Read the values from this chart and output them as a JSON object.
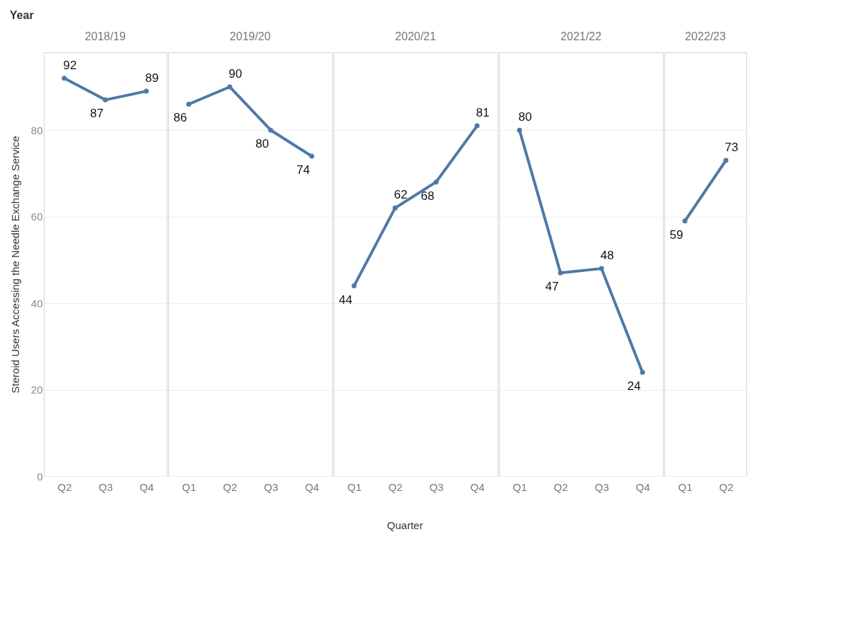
{
  "chart_data": [
    {
      "type": "line",
      "title": "2018/19",
      "categories": [
        "Q2",
        "Q3",
        "Q4"
      ],
      "values": [
        92,
        87,
        89
      ],
      "color": "#4e79a7",
      "ylabel": "Steroid Users Accessing the Needle Exchange Service",
      "ylim": [
        0,
        98
      ],
      "yticks": [
        0,
        20,
        40,
        60,
        80
      ],
      "grid": "y",
      "data_labels": true,
      "marker": "circle",
      "annotations": [
        "Year",
        "Quarter"
      ]
    },
    {
      "type": "line",
      "title": "2019/20",
      "categories": [
        "Q1",
        "Q2",
        "Q3",
        "Q4"
      ],
      "values": [
        86,
        90,
        80,
        74
      ],
      "color": "#4e79a7",
      "ylim": [
        0,
        98
      ],
      "yticks": [
        0,
        20,
        40,
        60,
        80
      ],
      "grid": "y",
      "data_labels": true,
      "marker": "circle",
      "tick_labels": "x"
    },
    {
      "type": "line",
      "title": "2020/21",
      "categories": [
        "Q1",
        "Q2",
        "Q3",
        "Q4"
      ],
      "values": [
        44,
        62,
        68,
        81
      ],
      "color": "#4e79a7",
      "ylim": [
        0,
        98
      ],
      "yticks": [
        0,
        20,
        40,
        60,
        80
      ],
      "grid": "y",
      "data_labels": true,
      "marker": "circle",
      "tick_labels": "x"
    },
    {
      "type": "line",
      "title": "2021/22",
      "categories": [
        "Q1",
        "Q2",
        "Q3",
        "Q4"
      ],
      "values": [
        80,
        47,
        48,
        24
      ],
      "color": "#4e79a7",
      "ylim": [
        0,
        98
      ],
      "yticks": [
        0,
        20,
        40,
        60,
        80
      ],
      "grid": "y",
      "data_labels": true,
      "marker": "circle",
      "tick_labels": "x"
    },
    {
      "type": "line",
      "title": "2022/23",
      "categories": [
        "Q1",
        "Q2"
      ],
      "values": [
        59,
        73
      ],
      "color": "#4e79a7",
      "ylim": [
        0,
        98
      ],
      "yticks": [
        0,
        20,
        40,
        60,
        80
      ],
      "grid": "y",
      "data_labels": true,
      "marker": "circle",
      "tick_labels": "x"
    }
  ]
}
